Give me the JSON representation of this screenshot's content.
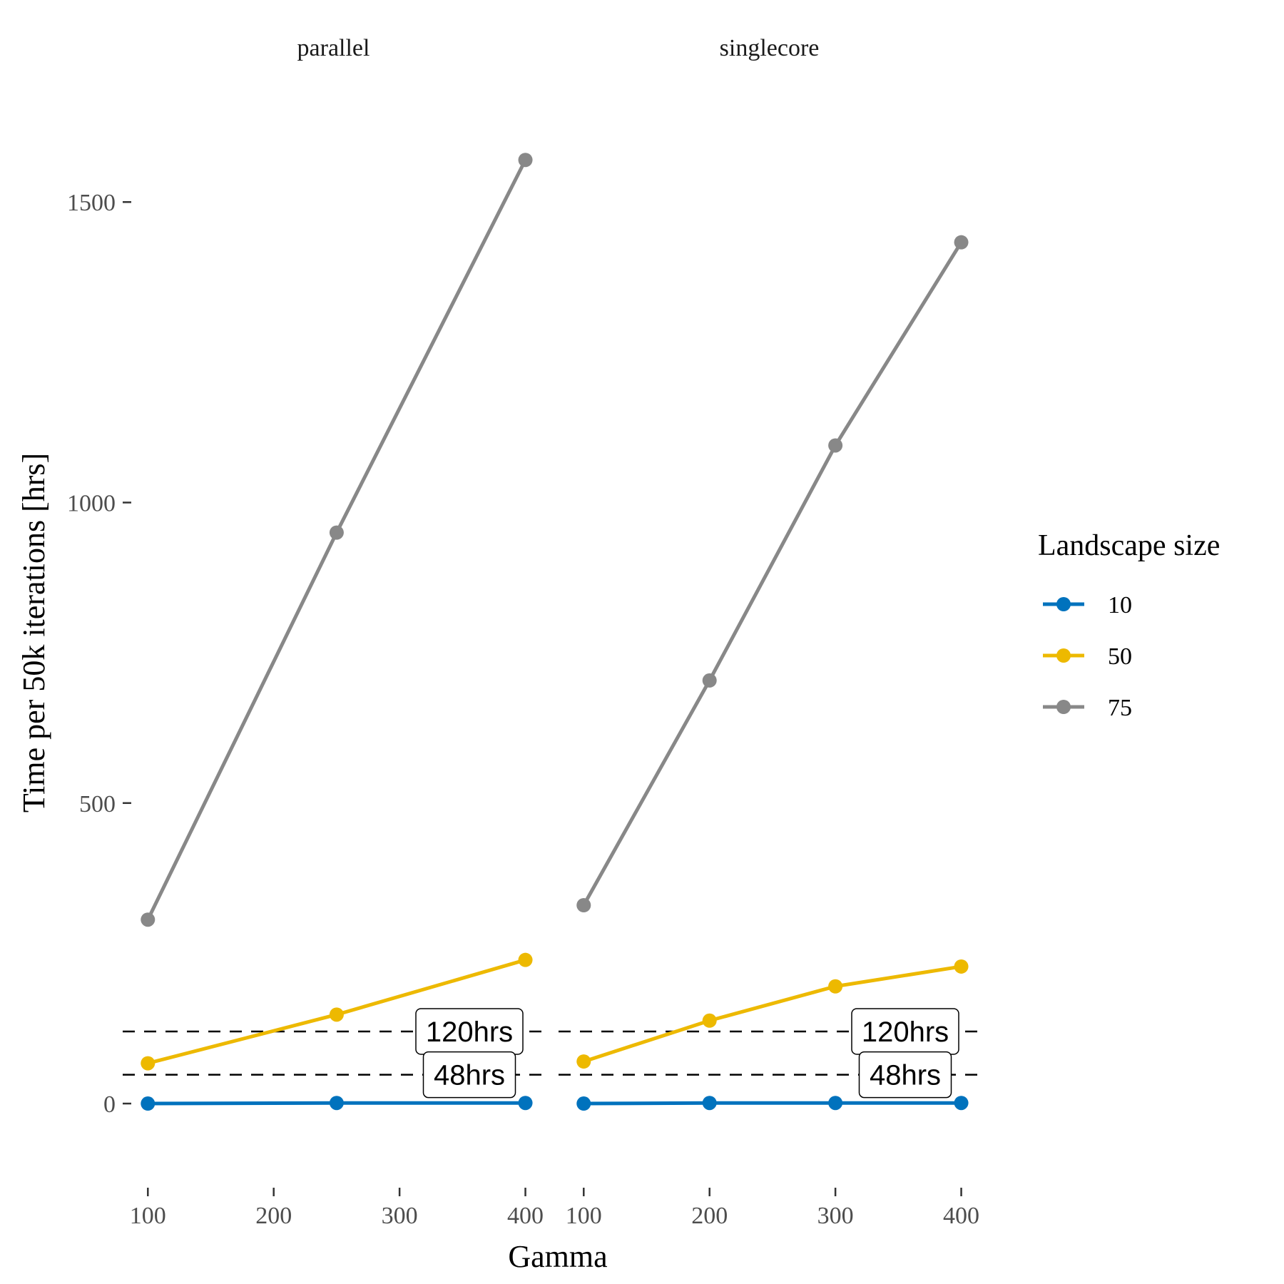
{
  "chart_data": {
    "type": "line",
    "xlabel": "Gamma",
    "ylabel": "Time per 50k iterations [hrs]",
    "ylim": [
      -140,
      1670
    ],
    "yticks": [
      0,
      500,
      1000,
      1500
    ],
    "legend": {
      "title": "Landscape size",
      "position": "right"
    },
    "grid": false,
    "reference_lines": [
      {
        "value": 120,
        "label": "120hrs",
        "style": "dashed"
      },
      {
        "value": 48,
        "label": "48hrs",
        "style": "dashed"
      }
    ],
    "panels": [
      {
        "name": "parallel",
        "xlim": [
          80,
          415
        ],
        "xticks": [
          100,
          200,
          300,
          400
        ],
        "series": [
          {
            "name": "10",
            "color": "#0072BD",
            "x": [
              100,
              250,
              400
            ],
            "y": [
              0,
              1,
              1
            ]
          },
          {
            "name": "50",
            "color": "#EDB900",
            "x": [
              100,
              250,
              400
            ],
            "y": [
              67,
              148,
              239
            ]
          },
          {
            "name": "75",
            "color": "#888888",
            "x": [
              100,
              250,
              400
            ],
            "y": [
              306,
              950,
              1570
            ]
          }
        ]
      },
      {
        "name": "singlecore",
        "xlim": [
          80,
          415
        ],
        "xticks": [
          100,
          200,
          300,
          400
        ],
        "series": [
          {
            "name": "10",
            "color": "#0072BD",
            "x": [
              100,
              200,
              300,
              400
            ],
            "y": [
              0,
              1,
              1,
              1
            ]
          },
          {
            "name": "50",
            "color": "#EDB900",
            "x": [
              100,
              200,
              300,
              400
            ],
            "y": [
              70,
              138,
              195,
              228
            ]
          },
          {
            "name": "75",
            "color": "#888888",
            "x": [
              100,
              200,
              300,
              400
            ],
            "y": [
              330,
              704,
              1095,
              1433
            ]
          }
        ]
      }
    ]
  }
}
